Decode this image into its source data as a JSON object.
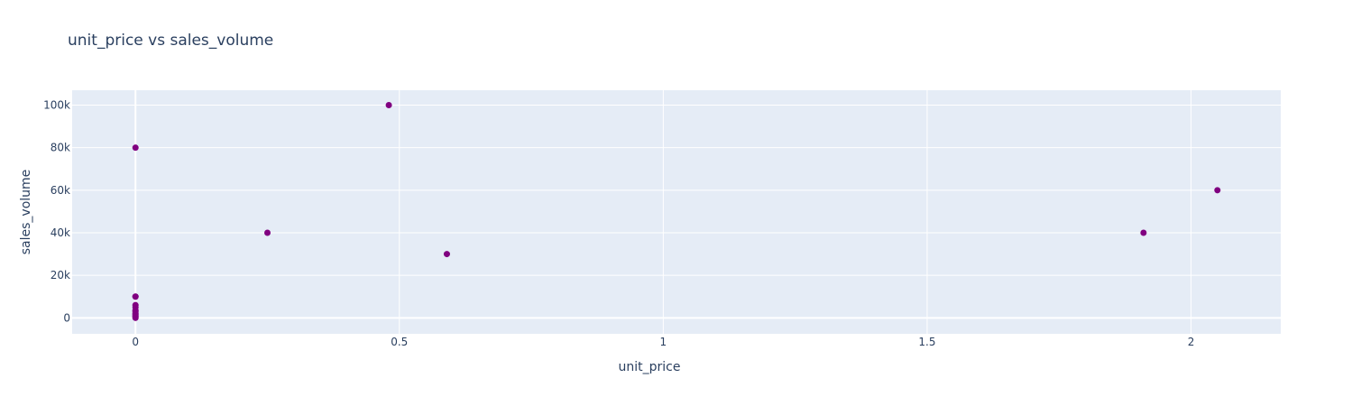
{
  "chart_data": {
    "type": "scatter",
    "title": "unit_price vs sales_volume",
    "xlabel": "unit_price",
    "ylabel": "sales_volume",
    "xlim": [
      -0.12,
      2.17
    ],
    "ylim": [
      -7500,
      107000
    ],
    "x_ticks": [
      0,
      0.5,
      1,
      1.5,
      2
    ],
    "x_tick_labels": [
      "0",
      "0.5",
      "1",
      "1.5",
      "2"
    ],
    "y_ticks": [
      0,
      20000,
      40000,
      60000,
      80000,
      100000
    ],
    "y_tick_labels": [
      "0",
      "20k",
      "40k",
      "60k",
      "80k",
      "100k"
    ],
    "grid": true,
    "legend": "none",
    "marker_color": "#800080",
    "background_color": "#e5ecf6",
    "series": [
      {
        "x": [
          0.48,
          2.05,
          0.25,
          1.91,
          0.59,
          0.0,
          0.0,
          0.0,
          0.0,
          0.0,
          0.0,
          0.0,
          0.0,
          0.0,
          0.0,
          0.0,
          0.0
        ],
        "y": [
          100000,
          60000,
          40000,
          40000,
          30000,
          80000,
          10000,
          10000,
          6000,
          5000,
          3500,
          3000,
          2000,
          1500,
          1000,
          500,
          0
        ]
      }
    ]
  }
}
